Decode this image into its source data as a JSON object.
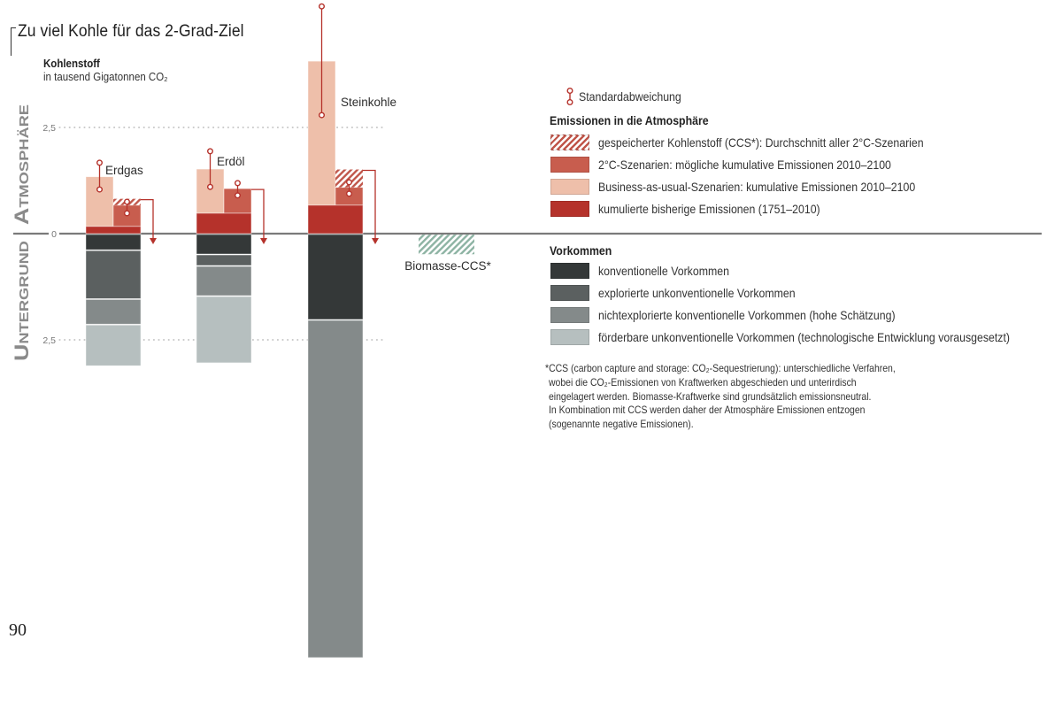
{
  "page": {
    "number": "90"
  },
  "header": {
    "title": "Zu viel Kohle für das 2-Grad-Ziel",
    "unit_label": "Kohlenstoff",
    "unit_sub": "in tausend Gigatonnen CO₂"
  },
  "chart_data": {
    "type": "bar",
    "subtype": "stacked-diverging",
    "title": "Zu viel Kohle für das 2-Grad-Ziel",
    "ylabel": "Kohlenstoff in tausend Gigatonnen CO₂",
    "upper_axis_label": "Atmosphäre",
    "lower_axis_label": "Untergrund",
    "yticks": [
      {
        "value": 2.5,
        "label": "2,5"
      },
      {
        "value": 0,
        "label": "0"
      },
      {
        "value": -2.5,
        "label": "2,5"
      }
    ],
    "ylim": [
      -8.4,
      5.5
    ],
    "grid": "dotted lines at ±2,5",
    "categories": [
      "Erdgas",
      "Erdöl",
      "Steinkohle"
    ],
    "series": [
      {
        "key": "historical",
        "name": "kumulierte bisherige Emissionen (1751–2010)",
        "color": "#b5322b",
        "values": [
          0.17,
          0.48,
          0.67
        ]
      },
      {
        "key": "bau",
        "name": "Business-as-usual-Szenarien: kumulative Emissionen 2010–2100",
        "color": "#eebfaa",
        "values": [
          1.17,
          1.04,
          3.39
        ]
      },
      {
        "key": "two_degree",
        "name": "2°C-Szenarien: mögliche kumulative Emissionen 2010–2100",
        "color": "#c85d4e",
        "values": [
          0.5,
          0.58,
          0.42
        ]
      },
      {
        "key": "ccs",
        "name": "gespeicherter Kohlenstoff (CCS*): Durchschnitt aller 2°C-Szenarien",
        "color": "#c0564a",
        "pattern": "hatched",
        "values": [
          0.15,
          0,
          0.42
        ]
      },
      {
        "key": "conventional",
        "name": "konventionelle Vorkommen",
        "color": "#343838",
        "values": [
          -0.38,
          -0.48,
          -2.02
        ]
      },
      {
        "key": "explored_unconventional",
        "name": "explorierte unkonventionelle Vorkommen",
        "color": "#5b6060",
        "values": [
          -1.15,
          -0.27,
          0
        ]
      },
      {
        "key": "unexplored_conventional",
        "name": "nichtexplorierte konventionelle Vorkommen (hohe Schätzung)",
        "color": "#848a8a",
        "values": [
          -0.6,
          -0.71,
          -7.96
        ]
      },
      {
        "key": "recoverable_unconventional",
        "name": "förderbare unkonventionelle Vorkommen (technologische Entwicklung vorausgesetzt)",
        "color": "#b6bfbf",
        "values": [
          -0.98,
          -1.58,
          0
        ]
      }
    ],
    "std_dev": {
      "name": "Standardabweichung",
      "color": "#b5322b",
      "bau": [
        [
          1.04,
          1.67
        ],
        [
          1.1,
          1.94
        ],
        [
          2.79,
          5.35
        ]
      ],
      "two_degree": [
        [
          0.48,
          0.75
        ],
        [
          0.9,
          1.19
        ],
        [
          0.94,
          1.21
        ]
      ]
    },
    "biomass_ccs": {
      "label": "Biomasse-CCS*",
      "value": -0.46,
      "color": "#8db3a3",
      "pattern": "hatched"
    },
    "axis_line_color": "#7a7a7a"
  },
  "legend": {
    "std_dev_label": "Standardabweichung",
    "emissions_heading": "Emissionen in die Atmosphäre",
    "emissions": [
      {
        "label": "gespeicherter Kohlenstoff (CCS*): Durchschnitt aller 2°C-Szenarien",
        "color": "#c0564a",
        "pattern": "hatched"
      },
      {
        "label": "2°C-Szenarien: mögliche kumulative Emissionen 2010–2100",
        "color": "#c85d4e"
      },
      {
        "label": "Business-as-usual-Szenarien: kumulative Emissionen 2010–2100",
        "color": "#eebfaa"
      },
      {
        "label": "kumulierte bisherige Emissionen (1751–2010)",
        "color": "#b5322b"
      }
    ],
    "deposits_heading": "Vorkommen",
    "deposits": [
      {
        "label": "konventionelle Vorkommen",
        "color": "#343838"
      },
      {
        "label": "explorierte unkonventionelle Vorkommen",
        "color": "#5b6060"
      },
      {
        "label": "nichtexplorierte konventionelle Vorkommen (hohe Schätzung)",
        "color": "#848a8a"
      },
      {
        "label": "förderbare unkonventionelle Vorkommen (technologische Entwicklung vorausgesetzt)",
        "color": "#b6bfbf"
      }
    ]
  },
  "footnote": {
    "lines": [
      "*CCS (carbon capture and storage: CO₂-Sequestrierung): unterschiedliche Verfahren,",
      "wobei die CO₂-Emissionen von Kraftwerken abgeschieden und unterirdisch",
      "eingelagert werden. Biomasse-Kraftwerke sind grundsätzlich emissionsneutral.",
      "In Kombination mit CCS werden daher der Atmosphäre Emissionen entzogen",
      "(sogenannte negative Emissionen)."
    ]
  }
}
